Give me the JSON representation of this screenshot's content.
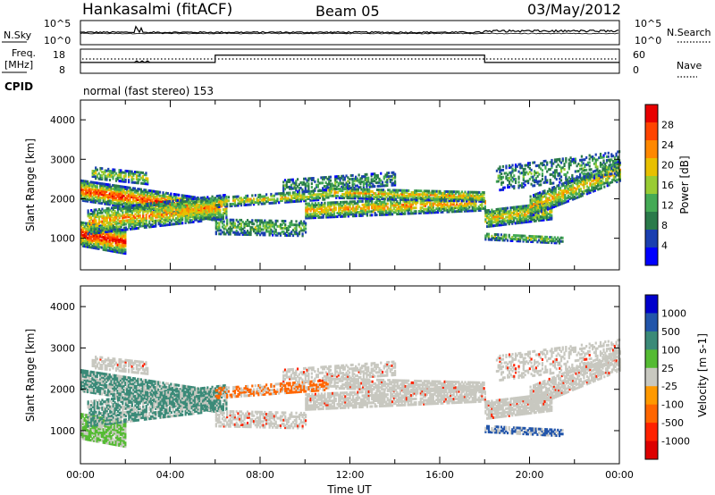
{
  "header": {
    "station": "Hankasalmi (fitACF)",
    "beam": "Beam 05",
    "date": "03/May/2012"
  },
  "noise_panel": {
    "left_label": "N.Sky",
    "left_ticks": [
      "10^5",
      "10^0"
    ],
    "right_label": "N.Search",
    "right_ticks": [
      "10^5",
      "10^0"
    ]
  },
  "freq_panel": {
    "left_label": "Freq.",
    "left_unit": "[MHz]",
    "left_ticks": [
      "18",
      "8"
    ],
    "right_label": "Nave",
    "right_ticks": [
      "60",
      "0"
    ]
  },
  "cpid": {
    "label": "CPID",
    "mode_text": "normal (fast stereo) 153"
  },
  "colors": {
    "power_scale": [
      "#0000ff",
      "#1a3fb0",
      "#2a7a4a",
      "#44aa55",
      "#99cc33",
      "#e8c000",
      "#ff8800",
      "#ff4400",
      "#e80000"
    ],
    "velocity_scale": [
      "#0000cc",
      "#2255aa",
      "#3b8a78",
      "#55bb33",
      "#c8c8c0",
      "#ff9900",
      "#ff6600",
      "#ff2200",
      "#dd0000"
    ],
    "ground_scatter": "#c8c8c0"
  },
  "chart_data": [
    {
      "type": "line",
      "name": "noise-panel",
      "xlim": [
        0,
        24
      ],
      "ylabel": "N.Sky",
      "y_ticks": [
        "10^5",
        "10^0"
      ],
      "right_ylabel": "N.Search",
      "right_y_ticks": [
        "10^5",
        "10^0"
      ]
    },
    {
      "type": "line",
      "name": "frequency-panel",
      "xlim": [
        0,
        24
      ],
      "ylabel": "Freq. [MHz]",
      "ylim": [
        8,
        18
      ],
      "y_ticks": [
        "18",
        "8"
      ],
      "right_ylabel": "Nave",
      "right_ylim": [
        0,
        60
      ],
      "right_y_ticks": [
        "60",
        "0"
      ],
      "nave_steps": [
        {
          "t0": 0,
          "t1": 6,
          "level": 0.45
        },
        {
          "t0": 6,
          "t1": 18,
          "level": 0.75
        },
        {
          "t0": 18,
          "t1": 24,
          "level": 0.45
        }
      ]
    },
    {
      "type": "heatmap",
      "title": "Power",
      "xlabel": "",
      "ylabel": "Slant Range [km]",
      "xlim": [
        0,
        24
      ],
      "ylim": [
        200,
        4500
      ],
      "y_ticks": [
        1000,
        2000,
        3000,
        4000
      ],
      "colorbar_label": "Power [dB]",
      "colorbar_ticks": [
        4,
        8,
        12,
        16,
        20,
        24,
        28
      ]
    },
    {
      "type": "heatmap",
      "title": "Velocity",
      "xlabel": "Time UT",
      "ylabel": "Slant Range [km]",
      "xlim": [
        0,
        24
      ],
      "ylim": [
        200,
        4500
      ],
      "x_tick_labels": [
        "00:00",
        "04:00",
        "08:00",
        "12:00",
        "16:00",
        "20:00",
        "00:00"
      ],
      "y_ticks": [
        1000,
        2000,
        3000,
        4000
      ],
      "colorbar_label": "Velocity [m s-1]",
      "colorbar_ticks": [
        "1000",
        "500",
        "100",
        "25",
        "-25",
        "-100",
        "-500",
        "-1000"
      ]
    }
  ]
}
